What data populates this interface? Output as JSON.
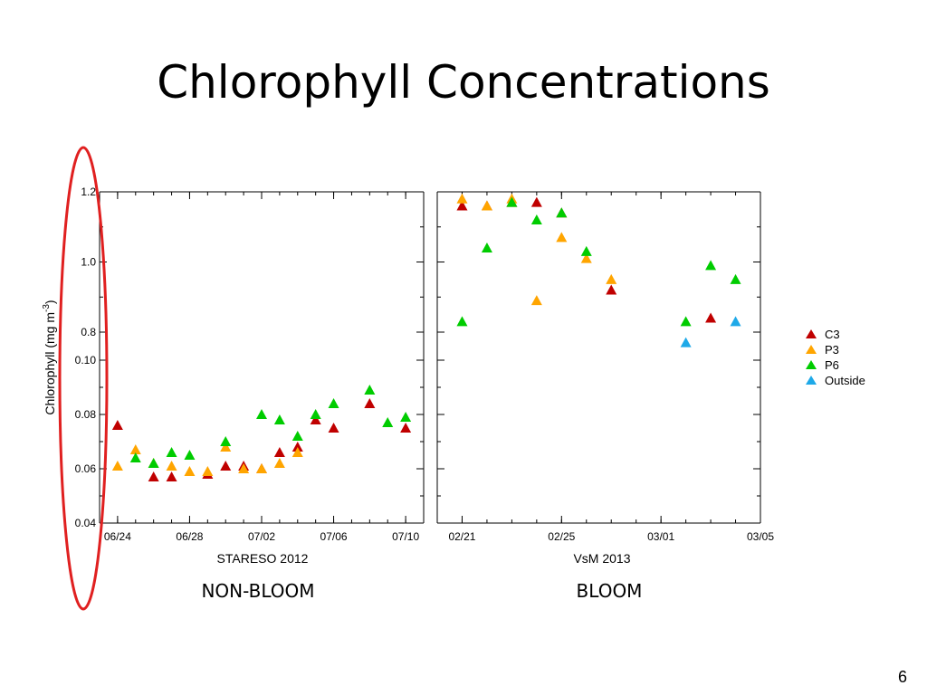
{
  "slide": {
    "title": "Chlorophyll Concentrations",
    "page_number": "6",
    "captions": {
      "left": "NON-BLOOM",
      "right": "BLOOM"
    }
  },
  "colors": {
    "C3": "#c00000",
    "P3": "#ffa500",
    "P6": "#00cc00",
    "Outside": "#1ea9e8",
    "highlight": "#e02020"
  },
  "chart_data": {
    "type": "scatter",
    "ylabel": "Chlorophyll (mg m-3)",
    "legend_position": "right",
    "legend": [
      "C3",
      "P3",
      "P6",
      "Outside"
    ],
    "y_segments": {
      "lower": {
        "range": [
          0.04,
          0.1
        ],
        "ticks": [
          "0.04",
          "0.06",
          "0.08",
          "0.10"
        ]
      },
      "upper": {
        "range": [
          0.72,
          1.2
        ],
        "ticks": [
          "0.8",
          "1.0",
          "1.2"
        ]
      }
    },
    "panels": [
      {
        "xlabel": "STARESO 2012",
        "x_range": [
          "2012-06-23",
          "2012-07-11"
        ],
        "x_ticks": [
          {
            "date": "2012-06-24",
            "label": "06/24"
          },
          {
            "date": "2012-06-28",
            "label": "06/28"
          },
          {
            "date": "2012-07-02",
            "label": "07/02"
          },
          {
            "date": "2012-07-06",
            "label": "07/06"
          },
          {
            "date": "2012-07-10",
            "label": "07/10"
          }
        ],
        "series": [
          {
            "name": "C3",
            "points": [
              {
                "x": "2012-06-24",
                "y": 0.076
              },
              {
                "x": "2012-06-26",
                "y": 0.057
              },
              {
                "x": "2012-06-27",
                "y": 0.057
              },
              {
                "x": "2012-06-29",
                "y": 0.058
              },
              {
                "x": "2012-06-30",
                "y": 0.061
              },
              {
                "x": "2012-07-01",
                "y": 0.061
              },
              {
                "x": "2012-07-02",
                "y": 0.06
              },
              {
                "x": "2012-07-03",
                "y": 0.066
              },
              {
                "x": "2012-07-04",
                "y": 0.068
              },
              {
                "x": "2012-07-05",
                "y": 0.078
              },
              {
                "x": "2012-07-06",
                "y": 0.075
              },
              {
                "x": "2012-07-08",
                "y": 0.084
              },
              {
                "x": "2012-07-10",
                "y": 0.075
              }
            ]
          },
          {
            "name": "P3",
            "points": [
              {
                "x": "2012-06-24",
                "y": 0.061
              },
              {
                "x": "2012-06-25",
                "y": 0.067
              },
              {
                "x": "2012-06-26",
                "y": 0.062
              },
              {
                "x": "2012-06-27",
                "y": 0.061
              },
              {
                "x": "2012-06-28",
                "y": 0.059
              },
              {
                "x": "2012-06-29",
                "y": 0.059
              },
              {
                "x": "2012-06-30",
                "y": 0.068
              },
              {
                "x": "2012-07-01",
                "y": 0.06
              },
              {
                "x": "2012-07-02",
                "y": 0.06
              },
              {
                "x": "2012-07-03",
                "y": 0.062
              },
              {
                "x": "2012-07-04",
                "y": 0.066
              }
            ]
          },
          {
            "name": "P6",
            "points": [
              {
                "x": "2012-06-25",
                "y": 0.064
              },
              {
                "x": "2012-06-26",
                "y": 0.062
              },
              {
                "x": "2012-06-27",
                "y": 0.066
              },
              {
                "x": "2012-06-28",
                "y": 0.065
              },
              {
                "x": "2012-06-30",
                "y": 0.07
              },
              {
                "x": "2012-07-02",
                "y": 0.08
              },
              {
                "x": "2012-07-03",
                "y": 0.078
              },
              {
                "x": "2012-07-04",
                "y": 0.072
              },
              {
                "x": "2012-07-05",
                "y": 0.08
              },
              {
                "x": "2012-07-06",
                "y": 0.084
              },
              {
                "x": "2012-07-08",
                "y": 0.089
              },
              {
                "x": "2012-07-09",
                "y": 0.077
              },
              {
                "x": "2012-07-10",
                "y": 0.079
              }
            ]
          },
          {
            "name": "Outside",
            "points": []
          }
        ]
      },
      {
        "xlabel": "VsM 2013",
        "x_range": [
          "2013-02-20",
          "2013-03-05"
        ],
        "x_ticks": [
          {
            "date": "2013-02-21",
            "label": "02/21"
          },
          {
            "date": "2013-02-25",
            "label": "02/25"
          },
          {
            "date": "2013-03-01",
            "label": "03/01"
          },
          {
            "date": "2013-03-05",
            "label": "03/05"
          }
        ],
        "series": [
          {
            "name": "C3",
            "points": [
              {
                "x": "2013-02-21",
                "y": 1.16
              },
              {
                "x": "2013-02-22",
                "y": 1.16
              },
              {
                "x": "2013-02-23",
                "y": 1.17
              },
              {
                "x": "2013-02-24",
                "y": 1.17
              },
              {
                "x": "2013-02-25",
                "y": 1.14
              },
              {
                "x": "2013-02-27",
                "y": 0.92
              },
              {
                "x": "2013-03-03",
                "y": 0.84
              }
            ]
          },
          {
            "name": "P3",
            "points": [
              {
                "x": "2013-02-21",
                "y": 1.18
              },
              {
                "x": "2013-02-22",
                "y": 1.16
              },
              {
                "x": "2013-02-23",
                "y": 1.18
              },
              {
                "x": "2013-02-24",
                "y": 0.89
              },
              {
                "x": "2013-02-25",
                "y": 1.07
              },
              {
                "x": "2013-02-26",
                "y": 1.01
              },
              {
                "x": "2013-02-27",
                "y": 0.95
              }
            ]
          },
          {
            "name": "P6",
            "points": [
              {
                "x": "2013-02-21",
                "y": 0.83
              },
              {
                "x": "2013-02-22",
                "y": 1.04
              },
              {
                "x": "2013-02-23",
                "y": 1.17
              },
              {
                "x": "2013-02-24",
                "y": 1.12
              },
              {
                "x": "2013-02-25",
                "y": 1.14
              },
              {
                "x": "2013-02-26",
                "y": 1.03
              },
              {
                "x": "2013-03-02",
                "y": 0.83
              },
              {
                "x": "2013-03-03",
                "y": 0.99
              },
              {
                "x": "2013-03-04",
                "y": 0.95
              }
            ]
          },
          {
            "name": "Outside",
            "points": [
              {
                "x": "2013-03-02",
                "y": 0.77
              },
              {
                "x": "2013-03-04",
                "y": 0.83
              }
            ]
          }
        ]
      }
    ]
  }
}
